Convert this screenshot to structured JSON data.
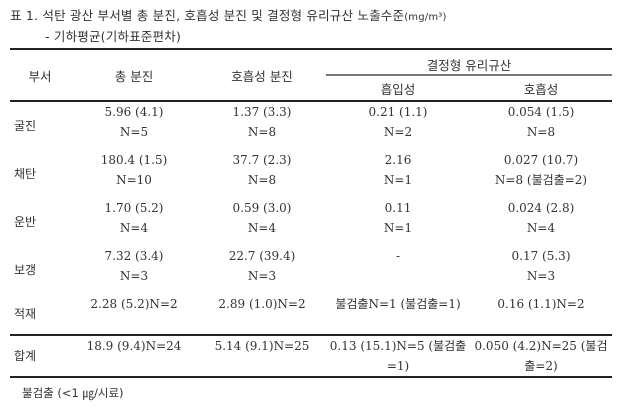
{
  "caption": {
    "line1": "표 1.  석탄 광산 부서별 총 분진, 호흡성 분진 및 결정형 유리규산 노출수준",
    "unit": "(mg/m³)",
    "line2": "- 기하평균(기하표준편차)"
  },
  "table": {
    "headers": {
      "dept": "부서",
      "total_dust": "총 분진",
      "respirable_dust": "호흡성 분진",
      "silica_group": "결정형 유리규산",
      "silica_inhalable": "흡입성",
      "silica_respirable": "호흡성"
    },
    "rows": [
      {
        "dept": "굴진",
        "total_dust": {
          "value": "5.96 (4.1)",
          "n": "N=5"
        },
        "respirable_dust": {
          "value": "1.37 (3.3)",
          "n": "N=8"
        },
        "silica_inhalable": {
          "value": "0.21 (1.1)",
          "n": "N=2"
        },
        "silica_respirable": {
          "value": "0.054 (1.5)",
          "n": "N=8"
        }
      },
      {
        "dept": "채탄",
        "total_dust": {
          "value": "180.4 (1.5)",
          "n": "N=10"
        },
        "respirable_dust": {
          "value": "37.7 (2.3)",
          "n": "N=8"
        },
        "silica_inhalable": {
          "value": "2.16",
          "n": "N=1"
        },
        "silica_respirable": {
          "value": "0.027 (10.7)",
          "n": "N=8 (불검출=2)"
        }
      },
      {
        "dept": "운반",
        "total_dust": {
          "value": "1.70 (5.2)",
          "n": "N=4"
        },
        "respirable_dust": {
          "value": "0.59 (3.0)",
          "n": "N=4"
        },
        "silica_inhalable": {
          "value": "0.11",
          "n": "N=1"
        },
        "silica_respirable": {
          "value": "0.024 (2.8)",
          "n": "N=4"
        }
      },
      {
        "dept": "보갱",
        "total_dust": {
          "value": "7.32 (3.4)",
          "n": "N=3"
        },
        "respirable_dust": {
          "value": "22.7 (39.4)",
          "n": "N=3"
        },
        "silica_inhalable": {
          "value": "-",
          "n": ""
        },
        "silica_respirable": {
          "value": "0.17 (5.3)",
          "n": "N=3"
        }
      },
      {
        "dept": "적재",
        "total_dust": {
          "value": "2.28 (5.2)",
          "n": "N=2"
        },
        "respirable_dust": {
          "value": "2.89 (1.0)",
          "n": "N=2"
        },
        "silica_inhalable": {
          "value": "불검출",
          "n": "N=1 (불검출=1)"
        },
        "silica_respirable": {
          "value": "0.16 (1.1)",
          "n": "N=2"
        }
      }
    ],
    "total": {
      "dept": "합계",
      "total_dust": {
        "value": "18.9 (9.4)",
        "n": "N=24"
      },
      "respirable_dust": {
        "value": "5.14 (9.1)",
        "n": "N=25"
      },
      "silica_inhalable": {
        "value": "0.13 (15.1)",
        "n": "N=5 (불검출=1)"
      },
      "silica_respirable": {
        "value": "0.050 (4.2)",
        "n": "N=25 (불검출=2)"
      }
    }
  },
  "footnote": "불검출 (<1 ㎍/시료)"
}
